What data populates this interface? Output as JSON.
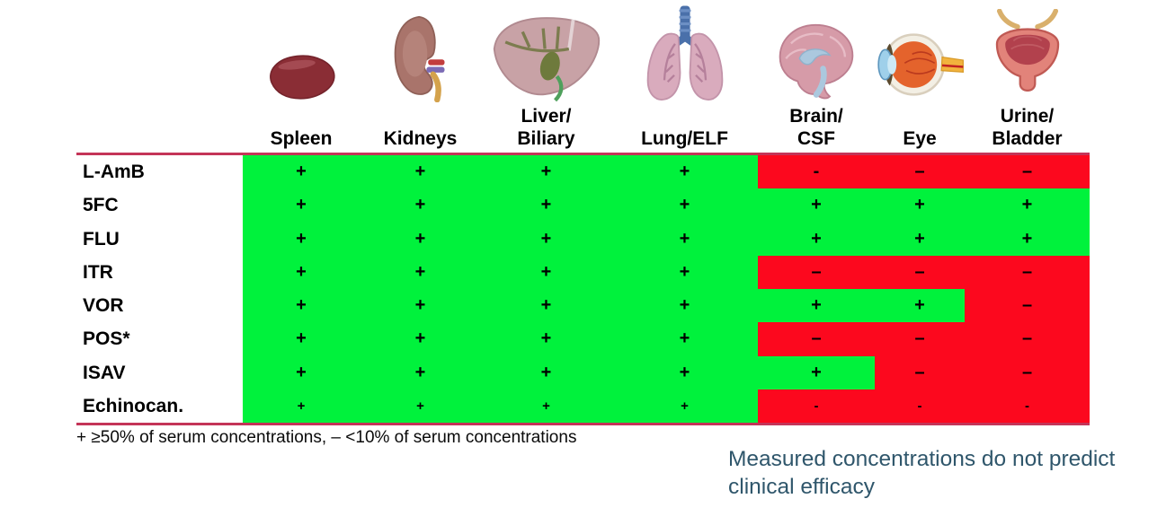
{
  "table": {
    "columns": [
      {
        "key": "spleen",
        "label": "Spleen",
        "icon": "spleen-icon"
      },
      {
        "key": "kidneys",
        "label": "Kidneys",
        "icon": "kidney-icon"
      },
      {
        "key": "liver-biliary",
        "label": "Liver/\nBiliary",
        "icon": "liver-icon"
      },
      {
        "key": "lung-elf",
        "label": "Lung/ELF",
        "icon": "lungs-icon"
      },
      {
        "key": "brain-csf",
        "label": "Brain/\nCSF",
        "icon": "brain-icon"
      },
      {
        "key": "eye",
        "label": "Eye",
        "icon": "eye-icon"
      },
      {
        "key": "urine-bladder",
        "label": "Urine/\nBladder",
        "icon": "bladder-icon"
      }
    ],
    "rows": [
      {
        "label": "L-AmB",
        "size": "normal",
        "cells": [
          {
            "sign": "+",
            "state": "pos"
          },
          {
            "sign": "+",
            "state": "pos"
          },
          {
            "sign": "+",
            "state": "pos"
          },
          {
            "sign": "+",
            "state": "pos"
          },
          {
            "sign": "-",
            "state": "neg"
          },
          {
            "sign": "–",
            "state": "neg"
          },
          {
            "sign": "–",
            "state": "neg"
          }
        ]
      },
      {
        "label": "5FC",
        "size": "normal",
        "cells": [
          {
            "sign": "+",
            "state": "pos"
          },
          {
            "sign": "+",
            "state": "pos"
          },
          {
            "sign": "+",
            "state": "pos"
          },
          {
            "sign": "+",
            "state": "pos"
          },
          {
            "sign": "+",
            "state": "pos"
          },
          {
            "sign": "+",
            "state": "pos"
          },
          {
            "sign": "+",
            "state": "pos"
          }
        ]
      },
      {
        "label": "FLU",
        "size": "normal",
        "cells": [
          {
            "sign": "+",
            "state": "pos"
          },
          {
            "sign": "+",
            "state": "pos"
          },
          {
            "sign": "+",
            "state": "pos"
          },
          {
            "sign": "+",
            "state": "pos"
          },
          {
            "sign": "+",
            "state": "pos"
          },
          {
            "sign": "+",
            "state": "pos"
          },
          {
            "sign": "+",
            "state": "pos"
          }
        ]
      },
      {
        "label": "ITR",
        "size": "normal",
        "cells": [
          {
            "sign": "+",
            "state": "pos"
          },
          {
            "sign": "+",
            "state": "pos"
          },
          {
            "sign": "+",
            "state": "pos"
          },
          {
            "sign": "+",
            "state": "pos"
          },
          {
            "sign": "–",
            "state": "neg"
          },
          {
            "sign": "–",
            "state": "neg"
          },
          {
            "sign": "–",
            "state": "neg"
          }
        ]
      },
      {
        "label": "VOR",
        "size": "normal",
        "cells": [
          {
            "sign": "+",
            "state": "pos"
          },
          {
            "sign": "+",
            "state": "pos"
          },
          {
            "sign": "+",
            "state": "pos"
          },
          {
            "sign": "+",
            "state": "pos"
          },
          {
            "sign": "+",
            "state": "pos"
          },
          {
            "sign": "+",
            "state": "pos"
          },
          {
            "sign": "–",
            "state": "neg"
          }
        ]
      },
      {
        "label": "POS*",
        "size": "normal",
        "cells": [
          {
            "sign": "+",
            "state": "pos"
          },
          {
            "sign": "+",
            "state": "pos"
          },
          {
            "sign": "+",
            "state": "pos"
          },
          {
            "sign": "+",
            "state": "pos"
          },
          {
            "sign": "–",
            "state": "neg"
          },
          {
            "sign": "–",
            "state": "neg"
          },
          {
            "sign": "–",
            "state": "neg"
          }
        ]
      },
      {
        "label": "ISAV",
        "size": "normal",
        "cells": [
          {
            "sign": "+",
            "state": "pos"
          },
          {
            "sign": "+",
            "state": "pos"
          },
          {
            "sign": "+",
            "state": "pos"
          },
          {
            "sign": "+",
            "state": "pos"
          },
          {
            "sign": "+",
            "state": "pos"
          },
          {
            "sign": "–",
            "state": "neg"
          },
          {
            "sign": "–",
            "state": "neg"
          }
        ]
      },
      {
        "label": "Echinocan.",
        "size": "small",
        "cells": [
          {
            "sign": "+",
            "state": "pos"
          },
          {
            "sign": "+",
            "state": "pos"
          },
          {
            "sign": "+",
            "state": "pos"
          },
          {
            "sign": "+",
            "state": "pos"
          },
          {
            "sign": "-",
            "state": "neg"
          },
          {
            "sign": "-",
            "state": "neg"
          },
          {
            "sign": "-",
            "state": "neg"
          }
        ]
      }
    ]
  },
  "legend": {
    "text": "+ ≥50% of serum concentrations, – <10% of serum concentrations"
  },
  "note": {
    "text": "Measured concentrations do not predict\nclinical efficacy"
  },
  "colors": {
    "positive": "#00F23C",
    "negative": "#FC081E",
    "divider": "#C43458",
    "note_text": "#2F566B"
  },
  "chart_data": {
    "type": "table",
    "columns": [
      "Spleen",
      "Kidneys",
      "Liver/Biliary",
      "Lung/ELF",
      "Brain/CSF",
      "Eye",
      "Urine/Bladder"
    ],
    "rows": [
      "L-AmB",
      "5FC",
      "FLU",
      "ITR",
      "VOR",
      "POS*",
      "ISAV",
      "Echinocan."
    ],
    "values": [
      [
        "+",
        "+",
        "+",
        "+",
        "-",
        "–",
        "–"
      ],
      [
        "+",
        "+",
        "+",
        "+",
        "+",
        "+",
        "+"
      ],
      [
        "+",
        "+",
        "+",
        "+",
        "+",
        "+",
        "+"
      ],
      [
        "+",
        "+",
        "+",
        "+",
        "–",
        "–",
        "–"
      ],
      [
        "+",
        "+",
        "+",
        "+",
        "+",
        "+",
        "–"
      ],
      [
        "+",
        "+",
        "+",
        "+",
        "–",
        "–",
        "–"
      ],
      [
        "+",
        "+",
        "+",
        "+",
        "+",
        "–",
        "–"
      ],
      [
        "+",
        "+",
        "+",
        "+",
        "-",
        "-",
        "-"
      ]
    ],
    "cell_states": [
      [
        "pos",
        "pos",
        "pos",
        "pos",
        "neg",
        "neg",
        "neg"
      ],
      [
        "pos",
        "pos",
        "pos",
        "pos",
        "pos",
        "pos",
        "pos"
      ],
      [
        "pos",
        "pos",
        "pos",
        "pos",
        "pos",
        "pos",
        "pos"
      ],
      [
        "pos",
        "pos",
        "pos",
        "pos",
        "neg",
        "neg",
        "neg"
      ],
      [
        "pos",
        "pos",
        "pos",
        "pos",
        "pos",
        "pos",
        "neg"
      ],
      [
        "pos",
        "pos",
        "pos",
        "pos",
        "neg",
        "neg",
        "neg"
      ],
      [
        "pos",
        "pos",
        "pos",
        "pos",
        "pos",
        "neg",
        "neg"
      ],
      [
        "pos",
        "pos",
        "pos",
        "pos",
        "neg",
        "neg",
        "neg"
      ]
    ],
    "legend": "+ ≥50% of serum concentrations, – <10% of serum concentrations",
    "annotation": "Measured concentrations do not predict clinical efficacy",
    "positive_color": "#00F23C",
    "negative_color": "#FC081E"
  }
}
